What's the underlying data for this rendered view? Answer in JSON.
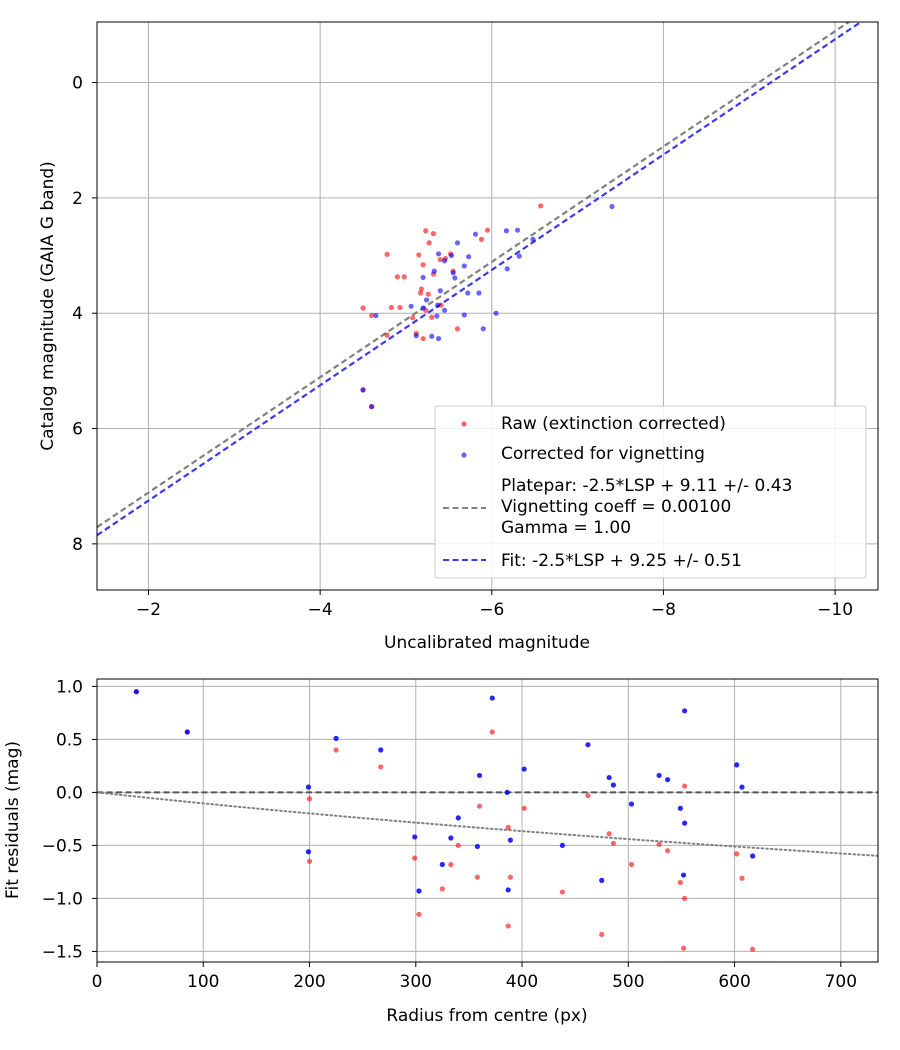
{
  "chart_data": [
    {
      "type": "scatter",
      "xlabel": "Uncalibrated magnitude",
      "ylabel": "Catalog magnitude (GAIA G band)",
      "xlim": [
        -1.4,
        -10.5
      ],
      "ylim": [
        8.8,
        -1.05
      ],
      "x_inverted": true,
      "y_inverted": true,
      "grid": true,
      "legend_position": "lower-right",
      "xticks": [
        -2,
        -4,
        -6,
        -8,
        -10
      ],
      "xtick_labels": [
        "−2",
        "−4",
        "−6",
        "−8",
        "−10"
      ],
      "yticks": [
        0,
        2,
        4,
        6,
        8
      ],
      "ytick_labels": [
        "0",
        "2",
        "4",
        "6",
        "8"
      ],
      "series": [
        {
          "name": "Raw (extinction corrected)",
          "kind": "scatter",
          "color": "#ff0000",
          "points": [
            [
              -6.57,
              2.14
            ],
            [
              -5.95,
              2.56
            ],
            [
              -5.88,
              2.72
            ],
            [
              -5.23,
              2.57
            ],
            [
              -5.32,
              2.62
            ],
            [
              -5.27,
              2.78
            ],
            [
              -4.78,
              2.98
            ],
            [
              -5.15,
              2.99
            ],
            [
              -5.52,
              2.97
            ],
            [
              -5.2,
              3.16
            ],
            [
              -5.4,
              3.07
            ],
            [
              -5.46,
              3.05
            ],
            [
              -5.32,
              3.32
            ],
            [
              -5.55,
              3.27
            ],
            [
              -4.9,
              3.37
            ],
            [
              -4.98,
              3.37
            ],
            [
              -5.18,
              3.58
            ],
            [
              -5.26,
              3.67
            ],
            [
              -5.17,
              3.65
            ],
            [
              -4.5,
              3.91
            ],
            [
              -4.83,
              3.9
            ],
            [
              -4.93,
              3.9
            ],
            [
              -5.08,
              4.08
            ],
            [
              -5.23,
              3.95
            ],
            [
              -5.3,
              4.07
            ],
            [
              -5.41,
              3.86
            ],
            [
              -5.6,
              4.27
            ],
            [
              -4.6,
              4.04
            ],
            [
              -4.78,
              4.38
            ],
            [
              -5.12,
              4.35
            ],
            [
              -5.2,
              4.44
            ],
            [
              -4.5,
              5.33
            ],
            [
              -4.6,
              5.62
            ]
          ]
        },
        {
          "name": "Corrected for vignetting",
          "kind": "scatter",
          "color": "#0000ff",
          "points": [
            [
              -7.4,
              2.15
            ],
            [
              -6.3,
              2.56
            ],
            [
              -6.17,
              2.57
            ],
            [
              -5.81,
              2.63
            ],
            [
              -6.48,
              2.72
            ],
            [
              -5.6,
              2.78
            ],
            [
              -6.32,
              3.01
            ],
            [
              -5.38,
              2.97
            ],
            [
              -5.73,
              3.02
            ],
            [
              -5.53,
              3.0
            ],
            [
              -5.45,
              3.09
            ],
            [
              -5.68,
              3.18
            ],
            [
              -6.18,
              3.23
            ],
            [
              -5.2,
              3.38
            ],
            [
              -5.33,
              3.27
            ],
            [
              -5.55,
              3.3
            ],
            [
              -5.57,
              3.39
            ],
            [
              -5.4,
              3.61
            ],
            [
              -5.72,
              3.65
            ],
            [
              -5.24,
              3.77
            ],
            [
              -5.06,
              3.88
            ],
            [
              -5.37,
              3.86
            ],
            [
              -5.85,
              3.65
            ],
            [
              -5.2,
              3.91
            ],
            [
              -5.45,
              3.95
            ],
            [
              -5.68,
              4.03
            ],
            [
              -6.05,
              4.0
            ],
            [
              -4.65,
              4.04
            ],
            [
              -5.36,
              4.05
            ],
            [
              -5.9,
              4.27
            ],
            [
              -5.3,
              4.4
            ],
            [
              -5.12,
              4.39
            ],
            [
              -5.38,
              4.44
            ],
            [
              -4.5,
              5.33
            ],
            [
              -4.6,
              5.62
            ]
          ]
        },
        {
          "name": "Platepar: -2.5*LSP + 9.11 +/- 0.43\nVignetting coeff = 0.00100\nGamma = 1.00",
          "kind": "line",
          "color": "#808080",
          "dash": "6,3.5",
          "slope": 1,
          "intercept": 9.11
        },
        {
          "name": "Fit: -2.5*LSP + 9.25 +/- 0.51",
          "kind": "line",
          "color": "#3a3aee",
          "dash": "6,3.5",
          "slope": 1,
          "intercept": 9.25
        }
      ]
    },
    {
      "type": "scatter",
      "xlabel": "Radius from centre (px)",
      "ylabel": "Fit residuals (mag)",
      "xlim": [
        0,
        735
      ],
      "ylim": [
        -1.6,
        1.07
      ],
      "grid": true,
      "xticks": [
        0,
        100,
        200,
        300,
        400,
        500,
        600,
        700
      ],
      "xtick_labels": [
        "0",
        "100",
        "200",
        "300",
        "400",
        "500",
        "600",
        "700"
      ],
      "yticks": [
        1.0,
        0.5,
        0.0,
        -0.5,
        -1.0,
        -1.5
      ],
      "ytick_labels": [
        "1.0",
        "0.5",
        "0.0",
        "−0.5",
        "−1.0",
        "−1.5"
      ],
      "series": [
        {
          "name": "",
          "kind": "scatter",
          "color": "#ff0000",
          "points": [
            [
              37,
              0.95
            ],
            [
              85,
              0.57
            ],
            [
              200,
              -0.06
            ],
            [
              200,
              -0.65
            ],
            [
              225,
              0.4
            ],
            [
              267,
              0.24
            ],
            [
              299,
              -0.62
            ],
            [
              303,
              -1.15
            ],
            [
              325,
              -0.91
            ],
            [
              333,
              -0.68
            ],
            [
              340,
              -0.5
            ],
            [
              358,
              -0.8
            ],
            [
              360,
              -0.13
            ],
            [
              372,
              0.57
            ],
            [
              387,
              -0.33
            ],
            [
              387,
              -1.26
            ],
            [
              389,
              -0.8
            ],
            [
              402,
              -0.15
            ],
            [
              438,
              -0.94
            ],
            [
              462,
              -0.03
            ],
            [
              475,
              -1.34
            ],
            [
              482,
              -0.39
            ],
            [
              486,
              -0.48
            ],
            [
              503,
              -0.68
            ],
            [
              529,
              -0.49
            ],
            [
              537,
              -0.55
            ],
            [
              549,
              -0.85
            ],
            [
              553,
              0.06
            ],
            [
              553,
              -1.0
            ],
            [
              552,
              -1.47
            ],
            [
              602,
              -0.58
            ],
            [
              607,
              -0.81
            ],
            [
              617,
              -1.48
            ]
          ]
        },
        {
          "name": "",
          "kind": "scatter",
          "color": "#0000ff",
          "points": [
            [
              37,
              0.95
            ],
            [
              85,
              0.57
            ],
            [
              199,
              0.05
            ],
            [
              199,
              -0.56
            ],
            [
              225,
              0.51
            ],
            [
              267,
              0.4
            ],
            [
              299,
              -0.42
            ],
            [
              303,
              -0.93
            ],
            [
              325,
              -0.68
            ],
            [
              333,
              -0.43
            ],
            [
              340,
              -0.24
            ],
            [
              358,
              -0.51
            ],
            [
              360,
              0.16
            ],
            [
              372,
              0.89
            ],
            [
              386,
              0.0
            ],
            [
              387,
              -0.92
            ],
            [
              389,
              -0.45
            ],
            [
              402,
              0.22
            ],
            [
              438,
              -0.5
            ],
            [
              462,
              0.45
            ],
            [
              475,
              -0.83
            ],
            [
              482,
              0.14
            ],
            [
              486,
              0.07
            ],
            [
              503,
              -0.11
            ],
            [
              529,
              0.16
            ],
            [
              537,
              0.12
            ],
            [
              549,
              -0.15
            ],
            [
              553,
              0.77
            ],
            [
              553,
              -0.29
            ],
            [
              552,
              -0.78
            ],
            [
              602,
              0.26
            ],
            [
              607,
              0.05
            ],
            [
              617,
              -0.6
            ]
          ]
        },
        {
          "name": "",
          "kind": "hline",
          "color": "#555555",
          "dash": "6,3.5",
          "y": 0.0
        },
        {
          "name": "",
          "kind": "curve",
          "color": "#808080",
          "dash": "1.6,3",
          "formula": "-2.5*log10(1+0.001*r)"
        }
      ]
    }
  ]
}
